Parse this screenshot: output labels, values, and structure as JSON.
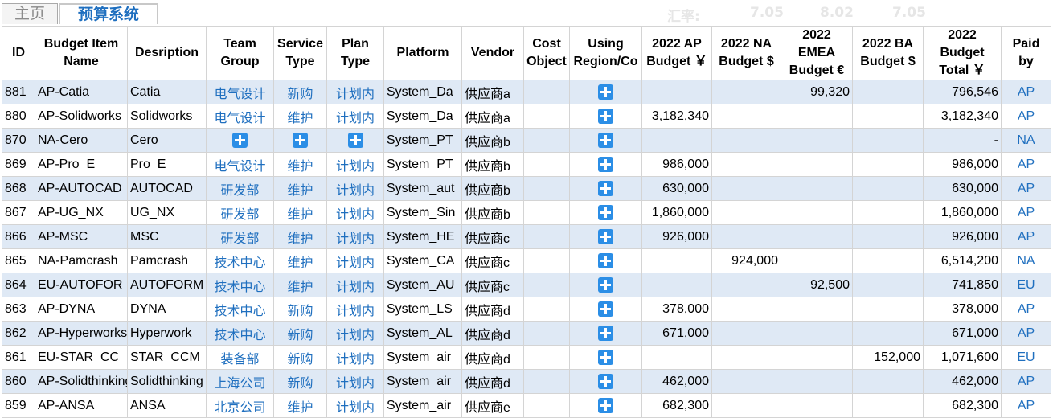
{
  "tabs": [
    {
      "label": "主页"
    },
    {
      "label": "预算系统"
    }
  ],
  "rates": {
    "label": "汇率:",
    "values": [
      "7.05",
      "8.02",
      "7.05"
    ]
  },
  "headers": {
    "id": "ID",
    "item": "Budget Item Name",
    "desc": "Desription",
    "team": "Team Group",
    "service": "Service Type",
    "plan": "Plan Type",
    "platform": "Platform",
    "vendor": "Vendor",
    "cost": "Cost Object",
    "region": "Using Region/Co",
    "ap": "2022 AP Budget ￥",
    "na": "2022 NA Budget $",
    "emea": "2022 EMEA Budget €",
    "ba": "2022 BA Budget $",
    "total": "2022 Budget Total ￥",
    "paid": "Paid by"
  },
  "rows": [
    {
      "id": "881",
      "item": "AP-Catia",
      "desc": "Catia",
      "team": "电气设计",
      "service": "新购",
      "plan": "计划内",
      "platform": "System_Da",
      "vendor": "供应商a",
      "cost": "",
      "ap": "",
      "na": "",
      "emea": "99,320",
      "ba": "",
      "total": "796,546",
      "paid": "AP"
    },
    {
      "id": "880",
      "item": "AP-Solidworks",
      "desc": "Solidworks",
      "team": "电气设计",
      "service": "维护",
      "plan": "计划内",
      "platform": "System_Da",
      "vendor": "供应商a",
      "cost": "",
      "ap": "3,182,340",
      "na": "",
      "emea": "",
      "ba": "",
      "total": "3,182,340",
      "paid": "AP"
    },
    {
      "id": "870",
      "item": "NA-Cero",
      "desc": "Cero",
      "team": "",
      "service": "",
      "plan": "",
      "platform": "System_PT",
      "vendor": "供应商b",
      "cost": "",
      "ap": "",
      "na": "",
      "emea": "",
      "ba": "",
      "total": "-",
      "paid": "NA"
    },
    {
      "id": "869",
      "item": "AP-Pro_E",
      "desc": "Pro_E",
      "team": "电气设计",
      "service": "维护",
      "plan": "计划内",
      "platform": "System_PT",
      "vendor": "供应商b",
      "cost": "",
      "ap": "986,000",
      "na": "",
      "emea": "",
      "ba": "",
      "total": "986,000",
      "paid": "AP"
    },
    {
      "id": "868",
      "item": "AP-AUTOCAD",
      "desc": "AUTOCAD",
      "team": "研发部",
      "service": "维护",
      "plan": "计划内",
      "platform": "System_aut",
      "vendor": "供应商b",
      "cost": "",
      "ap": "630,000",
      "na": "",
      "emea": "",
      "ba": "",
      "total": "630,000",
      "paid": "AP"
    },
    {
      "id": "867",
      "item": "AP-UG_NX",
      "desc": "UG_NX",
      "team": "研发部",
      "service": "维护",
      "plan": "计划内",
      "platform": "System_Sin",
      "vendor": "供应商b",
      "cost": "",
      "ap": "1,860,000",
      "na": "",
      "emea": "",
      "ba": "",
      "total": "1,860,000",
      "paid": "AP"
    },
    {
      "id": "866",
      "item": "AP-MSC",
      "desc": "MSC",
      "team": "研发部",
      "service": "维护",
      "plan": "计划内",
      "platform": "System_HE",
      "vendor": "供应商c",
      "cost": "",
      "ap": "926,000",
      "na": "",
      "emea": "",
      "ba": "",
      "total": "926,000",
      "paid": "AP"
    },
    {
      "id": "865",
      "item": "NA-Pamcrash",
      "desc": "Pamcrash",
      "team": "技术中心",
      "service": "维护",
      "plan": "计划内",
      "platform": "System_CA",
      "vendor": "供应商c",
      "cost": "",
      "ap": "",
      "na": "924,000",
      "emea": "",
      "ba": "",
      "total": "6,514,200",
      "paid": "NA"
    },
    {
      "id": "864",
      "item": "EU-AUTOFOR",
      "desc": "AUTOFORM",
      "team": "技术中心",
      "service": "维护",
      "plan": "计划内",
      "platform": "System_AU",
      "vendor": "供应商c",
      "cost": "",
      "ap": "",
      "na": "",
      "emea": "92,500",
      "ba": "",
      "total": "741,850",
      "paid": "EU"
    },
    {
      "id": "863",
      "item": "AP-DYNA",
      "desc": "DYNA",
      "team": "技术中心",
      "service": "新购",
      "plan": "计划内",
      "platform": "System_LS",
      "vendor": "供应商d",
      "cost": "",
      "ap": "378,000",
      "na": "",
      "emea": "",
      "ba": "",
      "total": "378,000",
      "paid": "AP"
    },
    {
      "id": "862",
      "item": "AP-Hyperworks",
      "desc": "Hyperwork",
      "team": "技术中心",
      "service": "新购",
      "plan": "计划内",
      "platform": "System_AL",
      "vendor": "供应商d",
      "cost": "",
      "ap": "671,000",
      "na": "",
      "emea": "",
      "ba": "",
      "total": "671,000",
      "paid": "AP"
    },
    {
      "id": "861",
      "item": "EU-STAR_CC",
      "desc": "STAR_CCM",
      "team": "装备部",
      "service": "新购",
      "plan": "计划内",
      "platform": "System_air",
      "vendor": "供应商d",
      "cost": "",
      "ap": "",
      "na": "",
      "emea": "",
      "ba": "152,000",
      "total": "1,071,600",
      "paid": "EU"
    },
    {
      "id": "860",
      "item": "AP-Solidthinking",
      "desc": "Solidthinking",
      "team": "上海公司",
      "service": "新购",
      "plan": "计划内",
      "platform": "System_air",
      "vendor": "供应商d",
      "cost": "",
      "ap": "462,000",
      "na": "",
      "emea": "",
      "ba": "",
      "total": "462,000",
      "paid": "AP"
    },
    {
      "id": "859",
      "item": "AP-ANSA",
      "desc": "ANSA",
      "team": "北京公司",
      "service": "维护",
      "plan": "计划内",
      "platform": "System_air",
      "vendor": "供应商e",
      "cost": "",
      "ap": "682,300",
      "na": "",
      "emea": "",
      "ba": "",
      "total": "682,300",
      "paid": "AP"
    }
  ],
  "icons": {
    "add": "plus-square-icon"
  },
  "colors": {
    "accent": "#1f6fbf",
    "row_stripe": "#dfe9f5",
    "icon": "#2b8ee6"
  }
}
